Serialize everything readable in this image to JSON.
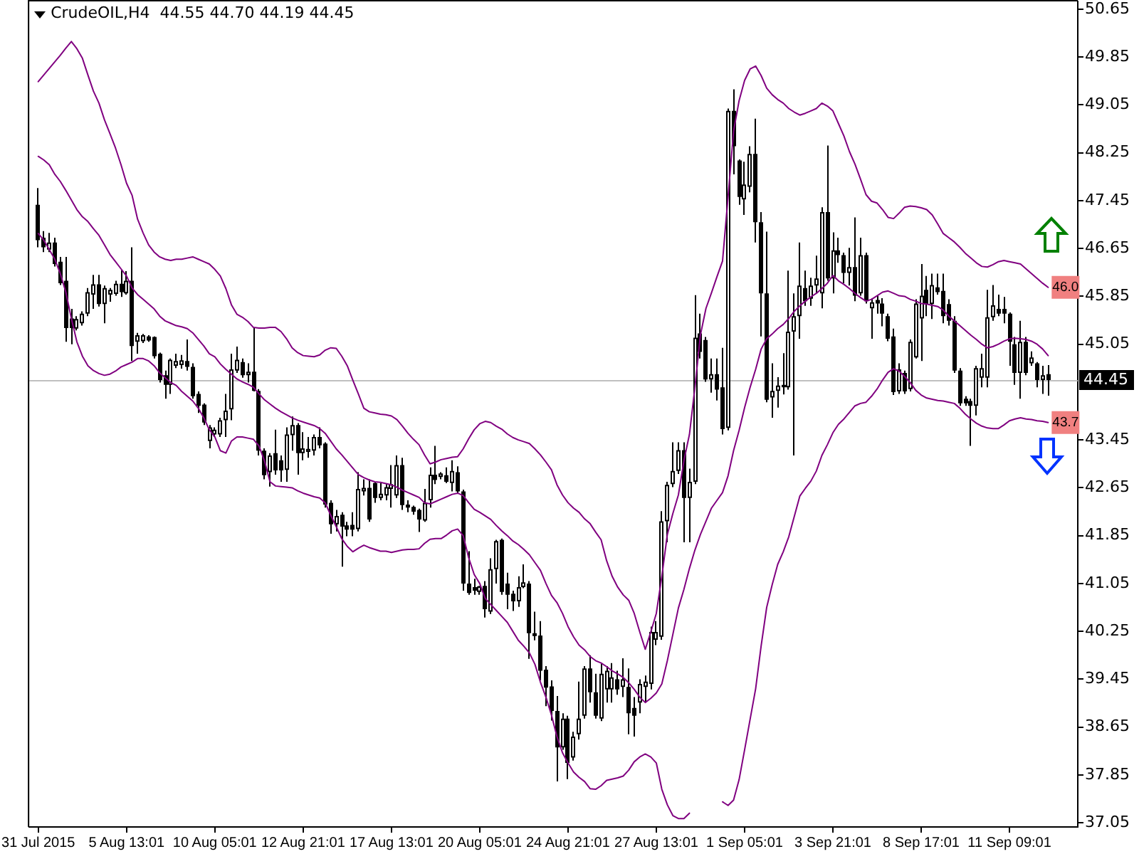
{
  "chart_data": {
    "type": "candlestick",
    "title": "CrudeOIL,H4  44.55 44.70 44.19 44.45",
    "categories": [
      "31 Jul 2015",
      null,
      null,
      null,
      null,
      null,
      null,
      null,
      null,
      null,
      null,
      null,
      null,
      null,
      null,
      null,
      "5 Aug 13:01",
      null,
      null,
      null,
      null,
      null,
      null,
      null,
      null,
      null,
      null,
      null,
      null,
      null,
      null,
      null,
      "10 Aug 05:01",
      null,
      null,
      null,
      null,
      null,
      null,
      null,
      null,
      null,
      null,
      null,
      null,
      null,
      null,
      null,
      "12 Aug 21:01",
      null,
      null,
      null,
      null,
      null,
      null,
      null,
      null,
      null,
      null,
      null,
      null,
      null,
      null,
      null,
      "17 Aug 13:01",
      null,
      null,
      null,
      null,
      null,
      null,
      null,
      null,
      null,
      null,
      null,
      null,
      null,
      null,
      null,
      "20 Aug 05:01",
      null,
      null,
      null,
      null,
      null,
      null,
      null,
      null,
      null,
      null,
      null,
      null,
      null,
      null,
      null,
      "24 Aug 21:01",
      null,
      null,
      null,
      null,
      null,
      null,
      null,
      null,
      null,
      null,
      null,
      null,
      null,
      null,
      null,
      "27 Aug 13:01",
      null,
      null,
      null,
      null,
      null,
      null,
      null,
      null,
      null,
      null,
      null,
      null,
      null,
      null,
      null,
      "1 Sep 05:01",
      null,
      null,
      null,
      null,
      null,
      null,
      null,
      null,
      null,
      null,
      null,
      null,
      null,
      null,
      null,
      "3 Sep 21:01",
      null,
      null,
      null,
      null,
      null,
      null,
      null,
      null,
      null,
      null,
      null,
      null,
      null,
      null,
      null,
      "8 Sep 17:01",
      null,
      null,
      null,
      null,
      null,
      null,
      null,
      null,
      null,
      null,
      null,
      null,
      null,
      null,
      null,
      "11 Sep 09:01",
      null,
      null,
      null,
      null,
      null,
      null,
      null
    ],
    "ohlc": [
      [
        47.38,
        47.66,
        46.67,
        46.79
      ],
      [
        46.83,
        46.94,
        46.59,
        46.67
      ],
      [
        46.63,
        46.91,
        46.59,
        46.75
      ],
      [
        46.75,
        46.83,
        46.35,
        46.39
      ],
      [
        46.43,
        46.51,
        46.04,
        46.07
      ],
      [
        46.11,
        46.51,
        45.09,
        45.32
      ],
      [
        45.48,
        45.64,
        45.05,
        45.32
      ],
      [
        45.31,
        45.52,
        45.28,
        45.47
      ],
      [
        45.4,
        45.6,
        45.36,
        45.56
      ],
      [
        45.56,
        45.99,
        45.52,
        45.92
      ],
      [
        45.88,
        46.21,
        45.64,
        46.05
      ],
      [
        46.05,
        46.21,
        45.68,
        45.72
      ],
      [
        45.72,
        46.03,
        45.4,
        45.99
      ],
      [
        45.88,
        45.99,
        45.76,
        45.96
      ],
      [
        45.89,
        46.11,
        45.86,
        46.06
      ],
      [
        46.06,
        46.29,
        45.84,
        45.92
      ],
      [
        45.9,
        46.27,
        45.88,
        46.11
      ],
      [
        46.11,
        46.67,
        44.77,
        45.02
      ],
      [
        45.09,
        45.24,
        44.89,
        45.2
      ],
      [
        45.1,
        45.22,
        45.07,
        45.2
      ],
      [
        45.18,
        45.2,
        45.09,
        45.11
      ],
      [
        45.17,
        45.18,
        44.81,
        44.85
      ],
      [
        44.89,
        44.91,
        44.41,
        44.45
      ],
      [
        44.53,
        44.61,
        44.14,
        44.37
      ],
      [
        44.37,
        44.81,
        44.22,
        44.79
      ],
      [
        44.69,
        44.89,
        44.65,
        44.77
      ],
      [
        44.7,
        44.87,
        44.64,
        44.78
      ],
      [
        44.77,
        45.13,
        44.61,
        44.67
      ],
      [
        44.67,
        44.73,
        44.14,
        44.18
      ],
      [
        44.22,
        44.26,
        43.9,
        44.02
      ],
      [
        44.04,
        44.06,
        43.7,
        43.74
      ],
      [
        43.43,
        43.7,
        43.31,
        43.66
      ],
      [
        43.54,
        43.66,
        43.5,
        43.62
      ],
      [
        43.54,
        43.82,
        43.5,
        43.78
      ],
      [
        43.78,
        44.22,
        43.5,
        43.94
      ],
      [
        43.96,
        44.89,
        43.78,
        44.63
      ],
      [
        44.61,
        45.01,
        44.57,
        44.79
      ],
      [
        44.75,
        44.81,
        44.49,
        44.53
      ],
      [
        44.53,
        44.73,
        44.41,
        44.59
      ],
      [
        44.59,
        45.32,
        44.26,
        44.27
      ],
      [
        44.27,
        44.3,
        43.19,
        43.27
      ],
      [
        43.27,
        43.31,
        42.79,
        42.86
      ],
      [
        42.91,
        43.23,
        42.67,
        43.19
      ],
      [
        43.23,
        43.62,
        42.87,
        42.94
      ],
      [
        43.11,
        43.19,
        42.75,
        42.94
      ],
      [
        42.95,
        43.66,
        42.75,
        43.54
      ],
      [
        43.53,
        43.84,
        43.27,
        43.7
      ],
      [
        43.7,
        43.73,
        42.87,
        43.23
      ],
      [
        43.23,
        43.58,
        43.11,
        43.31
      ],
      [
        43.25,
        43.5,
        43.15,
        43.3
      ],
      [
        43.27,
        43.54,
        43.19,
        43.5
      ],
      [
        43.5,
        43.66,
        43.31,
        43.36
      ],
      [
        43.39,
        43.41,
        42.32,
        42.37
      ],
      [
        42.4,
        42.44,
        41.88,
        42.04
      ],
      [
        42.04,
        42.28,
        41.92,
        42.18
      ],
      [
        42.2,
        42.24,
        41.33,
        42.0
      ],
      [
        42.02,
        42.08,
        41.84,
        41.95
      ],
      [
        42.03,
        42.24,
        41.84,
        41.95
      ],
      [
        41.96,
        42.91,
        41.92,
        42.63
      ],
      [
        42.59,
        42.79,
        42.52,
        42.65
      ],
      [
        42.65,
        42.79,
        42.08,
        42.12
      ],
      [
        42.73,
        42.75,
        42.4,
        42.48
      ],
      [
        42.48,
        42.73,
        42.44,
        42.55
      ],
      [
        42.52,
        42.71,
        42.44,
        42.66
      ],
      [
        42.63,
        43.03,
        42.32,
        42.71
      ],
      [
        42.52,
        43.19,
        42.48,
        43.03
      ],
      [
        43.03,
        43.15,
        42.28,
        42.36
      ],
      [
        42.37,
        42.44,
        42.24,
        42.32
      ],
      [
        42.33,
        42.35,
        42.2,
        42.25
      ],
      [
        42.28,
        42.3,
        41.91,
        42.12
      ],
      [
        42.1,
        42.63,
        42.08,
        42.4
      ],
      [
        42.44,
        42.99,
        42.32,
        42.87
      ],
      [
        42.87,
        43.35,
        42.71,
        42.78
      ],
      [
        42.83,
        42.91,
        42.79,
        42.89
      ],
      [
        42.86,
        42.99,
        42.73,
        42.75
      ],
      [
        42.73,
        43.11,
        42.59,
        42.93
      ],
      [
        42.91,
        43.01,
        42.55,
        42.59
      ],
      [
        42.59,
        42.62,
        40.93,
        41.05
      ],
      [
        41.05,
        41.59,
        40.86,
        40.89
      ],
      [
        40.99,
        41.13,
        40.86,
        40.93
      ],
      [
        40.91,
        41.01,
        40.86,
        41.0
      ],
      [
        41.01,
        41.09,
        40.48,
        40.62
      ],
      [
        40.58,
        41.47,
        40.54,
        41.29
      ],
      [
        41.29,
        41.78,
        41.05,
        41.76
      ],
      [
        41.78,
        41.8,
        40.86,
        40.91
      ],
      [
        41.05,
        41.23,
        40.62,
        40.86
      ],
      [
        40.88,
        40.93,
        40.59,
        40.75
      ],
      [
        40.75,
        41.17,
        40.66,
        40.99
      ],
      [
        40.99,
        41.37,
        40.97,
        41.07
      ],
      [
        41.05,
        41.09,
        39.79,
        40.22
      ],
      [
        40.22,
        40.58,
        40.1,
        40.17
      ],
      [
        40.18,
        40.42,
        39.43,
        39.59
      ],
      [
        39.61,
        39.67,
        39.0,
        39.31
      ],
      [
        39.33,
        39.43,
        38.76,
        38.92
      ],
      [
        38.92,
        39.17,
        37.74,
        38.31
      ],
      [
        38.31,
        38.88,
        38.27,
        38.79
      ],
      [
        38.79,
        38.84,
        37.78,
        38.05
      ],
      [
        38.14,
        38.57,
        38.09,
        38.49
      ],
      [
        38.53,
        39.41,
        38.44,
        38.79
      ],
      [
        38.84,
        39.67,
        38.79,
        39.63
      ],
      [
        39.63,
        39.85,
        39.06,
        39.23
      ],
      [
        39.23,
        39.54,
        38.79,
        38.84
      ],
      [
        38.79,
        39.72,
        38.75,
        39.54
      ],
      [
        39.28,
        39.67,
        39.06,
        39.59
      ],
      [
        39.28,
        39.72,
        39.06,
        39.48
      ],
      [
        39.45,
        39.59,
        39.19,
        39.28
      ],
      [
        39.32,
        39.8,
        39.15,
        39.45
      ],
      [
        39.32,
        39.63,
        38.53,
        38.88
      ],
      [
        38.97,
        39.15,
        38.49,
        38.84
      ],
      [
        39.06,
        39.45,
        38.88,
        39.37
      ],
      [
        39.32,
        39.51,
        39.07,
        39.41
      ],
      [
        39.37,
        40.33,
        39.28,
        40.24
      ],
      [
        40.11,
        40.42,
        40.02,
        40.24
      ],
      [
        40.16,
        42.26,
        40.11,
        42.09
      ],
      [
        42.09,
        42.75,
        41.74,
        42.7
      ],
      [
        42.71,
        43.41,
        42.66,
        42.93
      ],
      [
        42.93,
        43.41,
        42.88,
        43.28
      ],
      [
        43.28,
        43.41,
        41.74,
        42.48
      ],
      [
        42.48,
        42.97,
        41.74,
        42.75
      ],
      [
        42.75,
        45.87,
        42.71,
        45.16
      ],
      [
        45.23,
        45.56,
        44.81,
        44.92
      ],
      [
        45.12,
        45.17,
        44.42,
        44.46
      ],
      [
        44.46,
        44.81,
        44.24,
        44.55
      ],
      [
        44.55,
        44.81,
        44.11,
        44.29
      ],
      [
        44.33,
        44.99,
        43.54,
        43.63
      ],
      [
        43.65,
        48.99,
        43.61,
        48.95
      ],
      [
        48.95,
        49.31,
        47.89,
        48.36
      ],
      [
        48.12,
        48.14,
        47.38,
        47.51
      ],
      [
        47.47,
        48.1,
        47.21,
        47.72
      ],
      [
        47.68,
        48.36,
        47.59,
        48.23
      ],
      [
        48.23,
        48.82,
        46.75,
        47.09
      ],
      [
        47.09,
        47.26,
        45.18,
        45.9
      ],
      [
        45.9,
        46.93,
        44.08,
        44.12
      ],
      [
        44.16,
        44.73,
        43.82,
        44.27
      ],
      [
        44.27,
        44.5,
        43.99,
        44.36
      ],
      [
        44.33,
        44.9,
        44.21,
        44.37
      ],
      [
        44.33,
        46.28,
        44.29,
        45.26
      ],
      [
        45.26,
        45.9,
        43.19,
        45.52
      ],
      [
        45.52,
        46.75,
        45.14,
        46.03
      ],
      [
        45.99,
        46.28,
        45.69,
        45.77
      ],
      [
        45.81,
        46.16,
        45.69,
        46.03
      ],
      [
        46.03,
        46.53,
        45.9,
        46.15
      ],
      [
        45.9,
        47.34,
        45.65,
        47.26
      ],
      [
        47.26,
        48.37,
        46.11,
        46.15
      ],
      [
        46.15,
        46.92,
        45.9,
        46.62
      ],
      [
        46.62,
        46.83,
        46.41,
        46.54
      ],
      [
        46.54,
        46.58,
        46.07,
        46.24
      ],
      [
        46.24,
        46.66,
        46.03,
        46.34
      ],
      [
        46.34,
        47.17,
        45.77,
        45.86
      ],
      [
        45.9,
        46.83,
        45.86,
        46.54
      ],
      [
        46.54,
        46.58,
        45.73,
        45.77
      ],
      [
        45.65,
        45.82,
        45.14,
        45.75
      ],
      [
        45.79,
        45.86,
        45.56,
        45.73
      ],
      [
        45.73,
        45.82,
        45.35,
        45.56
      ],
      [
        45.52,
        45.56,
        45.1,
        45.14
      ],
      [
        45.18,
        45.31,
        44.2,
        44.25
      ],
      [
        44.26,
        44.73,
        44.22,
        44.63
      ],
      [
        44.57,
        44.61,
        44.22,
        44.26
      ],
      [
        44.3,
        45.13,
        44.26,
        45.09
      ],
      [
        44.83,
        45.8,
        44.81,
        45.73
      ],
      [
        45.48,
        46.39,
        44.77,
        45.86
      ],
      [
        45.96,
        46.19,
        45.52,
        45.72
      ],
      [
        45.72,
        46.23,
        45.47,
        46.04
      ],
      [
        46.0,
        46.23,
        45.88,
        45.92
      ],
      [
        45.94,
        46.23,
        45.4,
        45.52
      ],
      [
        45.72,
        45.8,
        45.36,
        45.44
      ],
      [
        45.44,
        45.52,
        44.57,
        44.61
      ],
      [
        44.61,
        44.65,
        44.02,
        44.06
      ],
      [
        44.14,
        44.18,
        44.02,
        44.06
      ],
      [
        44.1,
        44.14,
        43.35,
        44.02
      ],
      [
        44.02,
        44.69,
        43.86,
        44.65
      ],
      [
        44.49,
        44.89,
        44.33,
        44.65
      ],
      [
        44.49,
        45.96,
        44.33,
        45.5
      ],
      [
        45.5,
        46.04,
        45.44,
        45.7
      ],
      [
        45.64,
        45.88,
        45.52,
        45.56
      ],
      [
        45.64,
        45.84,
        45.4,
        45.56
      ],
      [
        45.56,
        45.58,
        44.69,
        45.09
      ],
      [
        45.05,
        45.17,
        44.37,
        44.57
      ],
      [
        44.57,
        45.44,
        44.14,
        45.09
      ],
      [
        45.09,
        45.17,
        44.53,
        44.57
      ],
      [
        44.73,
        44.93,
        44.69,
        44.83
      ],
      [
        44.73,
        44.75,
        44.33,
        44.45
      ],
      [
        44.45,
        44.69,
        44.22,
        44.53
      ],
      [
        44.55,
        44.7,
        44.19,
        44.45
      ]
    ],
    "color": "#000000",
    "series": [
      {
        "type": "line",
        "color": "#800080",
        "values": [
          49.44,
          49.55,
          49.66,
          49.77,
          49.88,
          50.0,
          50.11,
          49.99,
          49.83,
          49.55,
          49.28,
          49.08,
          48.8,
          48.57,
          48.33,
          48.05,
          47.74,
          47.54,
          47.14,
          46.91,
          46.71,
          46.59,
          46.51,
          46.47,
          46.45,
          46.47,
          46.47,
          46.49,
          46.51,
          46.47,
          46.43,
          46.39,
          46.3,
          46.19,
          45.98,
          45.71,
          45.55,
          45.5,
          45.43,
          45.33,
          45.32,
          45.32,
          45.33,
          45.33,
          45.26,
          45.14,
          44.99,
          44.91,
          44.86,
          44.85,
          44.84,
          44.87,
          44.95,
          44.99,
          44.98,
          44.85,
          44.69,
          44.45,
          44.22,
          43.98,
          43.92,
          43.9,
          43.88,
          43.87,
          43.85,
          43.79,
          43.68,
          43.56,
          43.46,
          43.37,
          43.2,
          43.05,
          43.08,
          43.12,
          43.14,
          43.16,
          43.17,
          43.3,
          43.47,
          43.62,
          43.72,
          43.76,
          43.74,
          43.68,
          43.63,
          43.55,
          43.49,
          43.45,
          43.42,
          43.39,
          43.3,
          43.2,
          43.08,
          42.95,
          42.7,
          42.53,
          42.4,
          42.31,
          42.24,
          42.13,
          42.05,
          41.91,
          41.78,
          41.43,
          41.17,
          40.99,
          40.86,
          40.77,
          40.55,
          40.24,
          39.95,
          40.24,
          40.55,
          41.17,
          41.87,
          42.22,
          42.53,
          43.1,
          43.54,
          44.33,
          45.21,
          45.65,
          45.91,
          46.18,
          46.44,
          47.51,
          48.61,
          49.12,
          49.46,
          49.65,
          49.7,
          49.54,
          49.33,
          49.22,
          49.14,
          49.08,
          48.99,
          48.93,
          48.88,
          48.91,
          48.95,
          48.99,
          49.08,
          49.03,
          48.95,
          48.74,
          48.53,
          48.27,
          48.06,
          47.81,
          47.55,
          47.44,
          47.41,
          47.3,
          47.17,
          47.15,
          47.24,
          47.34,
          47.36,
          47.35,
          47.33,
          47.3,
          47.21,
          47.06,
          46.9,
          46.83,
          46.76,
          46.67,
          46.57,
          46.49,
          46.41,
          46.35,
          46.34,
          46.38,
          46.43,
          46.45,
          46.43,
          46.41,
          46.39,
          46.31,
          46.23,
          46.15,
          46.07,
          46.0
        ]
      },
      {
        "type": "line",
        "color": "#800080",
        "values": [
          48.19,
          48.13,
          48.05,
          47.89,
          47.77,
          47.62,
          47.46,
          47.3,
          47.18,
          47.1,
          46.98,
          46.87,
          46.71,
          46.55,
          46.43,
          46.31,
          46.19,
          45.99,
          45.88,
          45.8,
          45.72,
          45.64,
          45.52,
          45.44,
          45.4,
          45.36,
          45.34,
          45.31,
          45.24,
          45.13,
          45.02,
          44.89,
          44.84,
          44.72,
          44.63,
          44.55,
          44.47,
          44.42,
          44.38,
          44.33,
          44.22,
          44.12,
          44.05,
          43.98,
          43.92,
          43.87,
          43.82,
          43.78,
          43.75,
          43.72,
          43.69,
          43.64,
          43.56,
          43.43,
          43.3,
          43.2,
          43.09,
          42.98,
          42.87,
          42.82,
          42.78,
          42.75,
          42.74,
          42.72,
          42.7,
          42.66,
          42.61,
          42.57,
          42.53,
          42.49,
          42.4,
          42.38,
          42.42,
          42.46,
          42.5,
          42.54,
          42.56,
          42.52,
          42.4,
          42.29,
          42.24,
          42.18,
          42.12,
          42.02,
          41.93,
          41.85,
          41.76,
          41.7,
          41.62,
          41.53,
          41.4,
          41.27,
          41.05,
          40.85,
          40.73,
          40.55,
          40.33,
          40.16,
          40.02,
          39.94,
          39.83,
          39.76,
          39.72,
          39.66,
          39.59,
          39.54,
          39.48,
          39.39,
          39.28,
          39.15,
          39.06,
          39.13,
          39.22,
          39.37,
          39.76,
          40.2,
          40.64,
          40.95,
          41.3,
          41.61,
          41.87,
          42.09,
          42.31,
          42.44,
          42.57,
          42.85,
          43.27,
          43.61,
          43.99,
          44.33,
          44.63,
          44.97,
          45.14,
          45.22,
          45.31,
          45.38,
          45.48,
          45.6,
          45.69,
          45.77,
          45.84,
          45.9,
          45.98,
          46.07,
          46.2,
          46.11,
          46.05,
          45.98,
          45.9,
          45.83,
          45.77,
          45.8,
          45.86,
          45.92,
          45.94,
          45.9,
          45.86,
          45.85,
          45.8,
          45.77,
          45.73,
          45.72,
          45.7,
          45.68,
          45.62,
          45.52,
          45.44,
          45.36,
          45.28,
          45.2,
          45.13,
          45.05,
          44.99,
          45.01,
          45.05,
          45.1,
          45.14,
          45.15,
          45.14,
          45.13,
          45.1,
          45.05,
          44.97,
          44.86
        ]
      },
      {
        "type": "line",
        "color": "#800080",
        "values": [
          46.9,
          46.79,
          46.63,
          46.47,
          46.23,
          45.92,
          45.48,
          45.09,
          44.85,
          44.69,
          44.61,
          44.56,
          44.53,
          44.55,
          44.6,
          44.67,
          44.71,
          44.75,
          44.81,
          44.81,
          44.77,
          44.69,
          44.57,
          44.49,
          44.41,
          44.36,
          44.26,
          44.18,
          44.1,
          43.98,
          43.82,
          43.62,
          43.5,
          43.27,
          43.23,
          43.43,
          43.5,
          43.5,
          43.48,
          43.46,
          43.35,
          43.1,
          42.75,
          42.68,
          42.67,
          42.66,
          42.65,
          42.6,
          42.56,
          42.53,
          42.5,
          42.48,
          42.4,
          42.19,
          42.0,
          41.8,
          41.67,
          41.58,
          41.64,
          41.69,
          41.65,
          41.62,
          41.59,
          41.59,
          41.57,
          41.59,
          41.61,
          41.62,
          41.62,
          41.63,
          41.72,
          41.79,
          41.8,
          41.8,
          41.86,
          41.93,
          41.96,
          41.85,
          41.48,
          41.2,
          41.05,
          40.8,
          40.7,
          40.6,
          40.5,
          40.4,
          40.25,
          40.1,
          40.0,
          39.89,
          39.7,
          39.4,
          39.15,
          38.85,
          38.49,
          38.22,
          38.05,
          37.9,
          37.81,
          37.74,
          37.62,
          37.61,
          37.67,
          37.76,
          37.78,
          37.8,
          37.83,
          37.93,
          38.07,
          38.15,
          38.2,
          38.15,
          38.05,
          37.61,
          37.35,
          37.17,
          37.12,
          37.12,
          37.21,
          null,
          null,
          null,
          null,
          null,
          37.4,
          37.34,
          37.43,
          37.77,
          38.27,
          38.78,
          39.29,
          40.01,
          40.65,
          41.03,
          41.37,
          41.58,
          41.83,
          42.17,
          42.51,
          42.64,
          42.76,
          42.93,
          43.19,
          43.37,
          43.57,
          43.71,
          43.8,
          43.91,
          44.02,
          44.06,
          44.08,
          44.18,
          44.3,
          44.45,
          44.58,
          44.64,
          44.6,
          44.51,
          44.41,
          44.28,
          44.2,
          44.15,
          44.13,
          44.11,
          44.1,
          44.08,
          44.06,
          43.98,
          43.88,
          43.8,
          43.73,
          43.68,
          43.65,
          43.64,
          43.64,
          43.7,
          43.77,
          43.8,
          43.82,
          43.8,
          43.79,
          43.77,
          43.76,
          43.74
        ]
      }
    ],
    "ylim": [
      36.98,
      50.78
    ],
    "yticks": [
      37.05,
      37.85,
      38.65,
      39.45,
      40.25,
      41.05,
      41.85,
      42.65,
      43.45,
      45.05,
      45.85,
      46.65,
      47.45,
      48.25,
      49.05,
      49.85,
      50.65
    ],
    "ref_lines": [
      {
        "axis": "y",
        "value": 44.45,
        "label": "44.45",
        "color": "#c0c0c0"
      }
    ],
    "annotations": [
      {
        "text": "46.0",
        "y": 46.0
      },
      {
        "text": "43.7",
        "y": 43.74
      }
    ]
  }
}
